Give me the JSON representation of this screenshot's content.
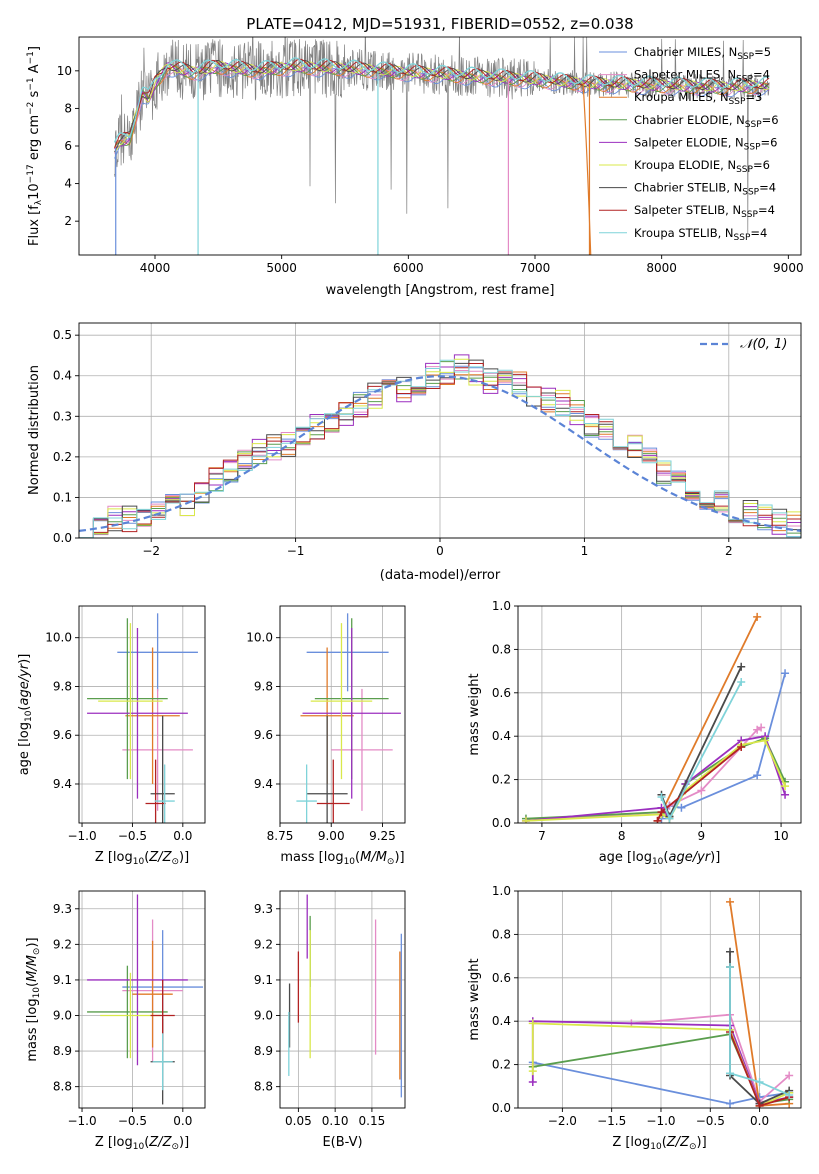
{
  "figure_title": "PLATE=0412, MJD=51931, FIBERID=0552, z=0.038",
  "colors": {
    "Chabrier MILES": "#6a8fdc",
    "Salpeter MILES": "#e48bc6",
    "Kroupa MILES": "#e07b2a",
    "Chabrier ELODIE": "#5a9e4e",
    "Salpeter ELODIE": "#9b2fbf",
    "Kroupa ELODIE": "#d9e84a",
    "Chabrier STELIB": "#4a4a4a",
    "Salpeter STELIB": "#b22222",
    "Kroupa STELIB": "#7fd3d9"
  },
  "chart_data": [
    {
      "type": "line",
      "title": "PLATE=0412, MJD=51931, FIBERID=0552, z=0.038",
      "xlabel": "wavelength [Angstrom, rest frame]",
      "ylabel": "Flux [f_λ 10^-17 erg cm^-2 s^-1 A^-1]",
      "xlim": [
        3400,
        9100
      ],
      "ylim": [
        0.2,
        11.8
      ],
      "xticks": [
        4000,
        5000,
        6000,
        7000,
        8000,
        9000
      ],
      "yticks": [
        2,
        4,
        6,
        8,
        10
      ],
      "legend_position": "top-right",
      "legend": [
        {
          "name": "Chabrier MILES",
          "nssp": "5"
        },
        {
          "name": "Salpeter MILES",
          "nssp": "4"
        },
        {
          "name": "Kroupa MILES",
          "nssp": "3"
        },
        {
          "name": "Chabrier ELODIE",
          "nssp": "6"
        },
        {
          "name": "Salpeter ELODIE",
          "nssp": "6"
        },
        {
          "name": "Kroupa ELODIE",
          "nssp": "6"
        },
        {
          "name": "Chabrier STELIB",
          "nssp": "4"
        },
        {
          "name": "Salpeter STELIB",
          "nssp": "4"
        },
        {
          "name": "Kroupa STELIB",
          "nssp": "4"
        }
      ],
      "data_range_angstrom": [
        3680,
        8850
      ],
      "model_continuum": {
        "x": [
          3680,
          3720,
          3800,
          3900,
          3950,
          4000,
          4100,
          4300,
          4500,
          4800,
          5100,
          5500,
          6000,
          6500,
          7000,
          7400,
          8000,
          8500,
          8850
        ],
        "y": [
          5.8,
          6.2,
          6.4,
          8.8,
          8.5,
          9.3,
          10.2,
          9.9,
          10.2,
          10.0,
          10.2,
          10.1,
          9.9,
          9.7,
          9.5,
          9.3,
          9.2,
          9.1,
          9.2
        ]
      }
    },
    {
      "type": "histogram",
      "xlabel": "(data-model)/error",
      "ylabel": "Normed distribution",
      "xlim": [
        -2.5,
        2.5
      ],
      "ylim": [
        0,
        0.53
      ],
      "xticks": [
        -2,
        -1,
        0,
        1,
        2
      ],
      "yticks": [
        0.0,
        0.1,
        0.2,
        0.3,
        0.4,
        0.5
      ],
      "bin_width": 0.1,
      "bin_start": -2.5,
      "reference_curve": "N(0,1)",
      "legend_label": "𝒩(0, 1)",
      "base_values": [
        0.03,
        0.04,
        0.05,
        0.05,
        0.06,
        0.07,
        0.08,
        0.09,
        0.12,
        0.14,
        0.17,
        0.19,
        0.21,
        0.22,
        0.23,
        0.26,
        0.27,
        0.29,
        0.3,
        0.33,
        0.35,
        0.36,
        0.37,
        0.38,
        0.4,
        0.41,
        0.42,
        0.41,
        0.39,
        0.4,
        0.38,
        0.36,
        0.34,
        0.33,
        0.31,
        0.28,
        0.26,
        0.25,
        0.22,
        0.2,
        0.16,
        0.14,
        0.12,
        0.1,
        0.09,
        0.07,
        0.06,
        0.05,
        0.04,
        0.03
      ]
    },
    {
      "type": "errorbar",
      "xlabel": "Z [log10(Z/Z⊙)]",
      "ylabel": "age [log10(age/yr)]",
      "xlim": [
        -1.03,
        0.22
      ],
      "ylim": [
        9.24,
        10.13
      ],
      "xticks": [
        -1.0,
        -0.5,
        0.0
      ],
      "yticks": [
        9.4,
        9.6,
        9.8,
        10.0
      ],
      "points": [
        {
          "series": "Chabrier MILES",
          "x": -0.25,
          "xerr": 0.4,
          "y": 9.94,
          "yerr": 0.16
        },
        {
          "series": "Salpeter MILES",
          "x": -0.25,
          "xerr": 0.35,
          "y": 9.54,
          "yerr": 0.25
        },
        {
          "series": "Kroupa MILES",
          "x": -0.3,
          "xerr": 0.27,
          "y": 9.68,
          "yerr": 0.28
        },
        {
          "series": "Chabrier ELODIE",
          "x": -0.55,
          "xerr": 0.4,
          "y": 9.75,
          "yerr": 0.33
        },
        {
          "series": "Salpeter ELODIE",
          "x": -0.45,
          "xerr": 0.5,
          "y": 9.69,
          "yerr": 0.35
        },
        {
          "series": "Kroupa ELODIE",
          "x": -0.52,
          "xerr": 0.32,
          "y": 9.74,
          "yerr": 0.32
        },
        {
          "series": "Chabrier STELIB",
          "x": -0.2,
          "xerr": 0.12,
          "y": 9.36,
          "yerr": 0.32
        },
        {
          "series": "Salpeter STELIB",
          "x": -0.27,
          "xerr": 0.1,
          "y": 9.32,
          "yerr": 0.18
        },
        {
          "series": "Kroupa STELIB",
          "x": -0.18,
          "xerr": 0.1,
          "y": 9.33,
          "yerr": 0.15
        }
      ]
    },
    {
      "type": "errorbar",
      "xlabel": "mass [log10(M/M⊙)]",
      "ylabel": "",
      "xlim": [
        8.75,
        9.36
      ],
      "ylim": [
        9.24,
        10.13
      ],
      "xticks": [
        8.75,
        9.0,
        9.25
      ],
      "yticks": [
        9.4,
        9.6,
        9.8,
        10.0
      ],
      "points": [
        {
          "series": "Chabrier MILES",
          "x": 9.08,
          "xerr": 0.2,
          "y": 9.94,
          "yerr": 0.16
        },
        {
          "series": "Salpeter MILES",
          "x": 9.15,
          "xerr": 0.15,
          "y": 9.54,
          "yerr": 0.25
        },
        {
          "series": "Kroupa MILES",
          "x": 8.98,
          "xerr": 0.13,
          "y": 9.68,
          "yerr": 0.28
        },
        {
          "series": "Chabrier ELODIE",
          "x": 9.1,
          "xerr": 0.18,
          "y": 9.75,
          "yerr": 0.33
        },
        {
          "series": "Salpeter ELODIE",
          "x": 9.1,
          "xerr": 0.24,
          "y": 9.69,
          "yerr": 0.35
        },
        {
          "series": "Kroupa ELODIE",
          "x": 9.05,
          "xerr": 0.15,
          "y": 9.74,
          "yerr": 0.32
        },
        {
          "series": "Chabrier STELIB",
          "x": 8.98,
          "xerr": 0.1,
          "y": 9.36,
          "yerr": 0.32
        },
        {
          "series": "Salpeter STELIB",
          "x": 9.01,
          "xerr": 0.08,
          "y": 9.32,
          "yerr": 0.18
        },
        {
          "series": "Kroupa STELIB",
          "x": 8.88,
          "xerr": 0.05,
          "y": 9.33,
          "yerr": 0.15
        }
      ]
    },
    {
      "type": "line",
      "xlabel": "age [log10(age/yr)]",
      "ylabel": "mass weight",
      "xlim": [
        6.7,
        10.25
      ],
      "ylim": [
        0,
        1
      ],
      "xticks": [
        7,
        8,
        9,
        10
      ],
      "yticks": [
        0.0,
        0.2,
        0.4,
        0.6,
        0.8,
        1.0
      ],
      "series": [
        {
          "name": "Chabrier MILES",
          "x": [
            8.5,
            8.6,
            8.75,
            9.7,
            10.05
          ],
          "y": [
            0.02,
            0.08,
            0.07,
            0.22,
            0.69
          ]
        },
        {
          "name": "Salpeter MILES",
          "x": [
            6.8,
            8.5,
            8.6,
            9.0,
            9.7,
            9.75
          ],
          "y": [
            0.01,
            0.05,
            0.08,
            0.15,
            0.43,
            0.44
          ]
        },
        {
          "name": "Kroupa MILES",
          "x": [
            8.45,
            9.7
          ],
          "y": [
            0.01,
            0.95
          ]
        },
        {
          "name": "Chabrier ELODIE",
          "x": [
            6.8,
            8.5,
            8.6,
            8.8,
            9.5,
            9.8,
            10.05
          ],
          "y": [
            0.02,
            0.05,
            0.03,
            0.18,
            0.35,
            0.39,
            0.19
          ]
        },
        {
          "name": "Salpeter ELODIE",
          "x": [
            6.8,
            8.5,
            8.6,
            8.8,
            9.5,
            9.8,
            10.05
          ],
          "y": [
            0.01,
            0.07,
            0.02,
            0.18,
            0.38,
            0.4,
            0.13
          ]
        },
        {
          "name": "Kroupa ELODIE",
          "x": [
            6.8,
            8.5,
            8.6,
            8.8,
            9.5,
            9.8,
            10.05
          ],
          "y": [
            0.01,
            0.04,
            0.02,
            0.15,
            0.36,
            0.38,
            0.17
          ]
        },
        {
          "name": "Chabrier STELIB",
          "x": [
            8.5,
            8.6,
            9.5
          ],
          "y": [
            0.13,
            0.03,
            0.72
          ]
        },
        {
          "name": "Salpeter STELIB",
          "x": [
            8.45,
            8.5,
            9.5
          ],
          "y": [
            0.01,
            0.05,
            0.35
          ]
        },
        {
          "name": "Kroupa STELIB",
          "x": [
            8.5,
            8.6,
            9.5
          ],
          "y": [
            0.12,
            0.02,
            0.65
          ]
        }
      ]
    },
    {
      "type": "errorbar",
      "xlabel": "Z [log10(Z/Z⊙)]",
      "ylabel": "mass [log10(M/M⊙)]",
      "xlim": [
        -1.03,
        0.22
      ],
      "ylim": [
        8.74,
        9.35
      ],
      "xticks": [
        -1.0,
        -0.5,
        0.0
      ],
      "yticks": [
        8.8,
        8.9,
        9.0,
        9.1,
        9.2,
        9.3
      ],
      "points": [
        {
          "series": "Chabrier MILES",
          "x": -0.2,
          "xerr": 0.4,
          "y": 9.08,
          "yerr": 0.16
        },
        {
          "series": "Salpeter MILES",
          "x": -0.3,
          "xerr": 0.3,
          "y": 9.07,
          "yerr": 0.2
        },
        {
          "series": "Kroupa MILES",
          "x": -0.3,
          "xerr": 0.2,
          "y": 9.06,
          "yerr": 0.15
        },
        {
          "series": "Chabrier ELODIE",
          "x": -0.55,
          "xerr": 0.4,
          "y": 9.01,
          "yerr": 0.13
        },
        {
          "series": "Salpeter ELODIE",
          "x": -0.45,
          "xerr": 0.5,
          "y": 9.1,
          "yerr": 0.24
        },
        {
          "series": "Kroupa ELODIE",
          "x": -0.52,
          "xerr": 0.3,
          "y": 9.0,
          "yerr": 0.12
        },
        {
          "series": "Chabrier STELIB",
          "x": -0.2,
          "xerr": 0.12,
          "y": 8.87,
          "yerr": 0.12
        },
        {
          "series": "Salpeter STELIB",
          "x": -0.2,
          "xerr": 0.12,
          "y": 9.0,
          "yerr": 0.1
        },
        {
          "series": "Kroupa STELIB",
          "x": -0.2,
          "xerr": 0.1,
          "y": 8.87,
          "yerr": 0.08
        }
      ]
    },
    {
      "type": "errorbar",
      "xlabel": "E(B-V)",
      "ylabel": "",
      "xlim": [
        0.025,
        0.195
      ],
      "ylim": [
        8.74,
        9.35
      ],
      "xticks": [
        0.05,
        0.1,
        0.15
      ],
      "yticks": [
        8.8,
        8.9,
        9.0,
        9.1,
        9.2,
        9.3
      ],
      "points": [
        {
          "series": "Chabrier MILES",
          "x": 0.19,
          "y": 9.0,
          "yerr": 0.23
        },
        {
          "series": "Salpeter MILES",
          "x": 0.155,
          "y": 9.08,
          "yerr": 0.19
        },
        {
          "series": "Kroupa MILES",
          "x": 0.188,
          "y": 9.0,
          "yerr": 0.18
        },
        {
          "series": "Chabrier ELODIE",
          "x": 0.066,
          "y": 9.18,
          "yerr": 0.1
        },
        {
          "series": "Salpeter ELODIE",
          "x": 0.062,
          "y": 9.25,
          "yerr": 0.09
        },
        {
          "series": "Kroupa ELODIE",
          "x": 0.066,
          "y": 9.06,
          "yerr": 0.18
        },
        {
          "series": "Chabrier STELIB",
          "x": 0.038,
          "y": 9.0,
          "yerr": 0.09
        },
        {
          "series": "Salpeter STELIB",
          "x": 0.05,
          "y": 9.08,
          "yerr": 0.1
        },
        {
          "series": "Kroupa STELIB",
          "x": 0.037,
          "y": 8.92,
          "yerr": 0.09
        }
      ]
    },
    {
      "type": "line",
      "xlabel": "Z [log10(Z/Z⊙)]",
      "ylabel": "mass weight",
      "xlim": [
        -2.45,
        0.42
      ],
      "ylim": [
        0,
        1
      ],
      "xticks": [
        -2.0,
        -1.5,
        -1.0,
        -0.5,
        0.0
      ],
      "yticks": [
        0.0,
        0.2,
        0.4,
        0.6,
        0.8,
        1.0
      ],
      "series": [
        {
          "name": "Chabrier MILES",
          "x": [
            -2.3,
            -0.3,
            0.0,
            0.3
          ],
          "y": [
            0.21,
            0.02,
            0.05,
            0.07
          ]
        },
        {
          "name": "Salpeter MILES",
          "x": [
            -1.3,
            -0.3,
            0.0,
            0.3
          ],
          "y": [
            0.39,
            0.43,
            0.03,
            0.15
          ]
        },
        {
          "name": "Kroupa MILES",
          "x": [
            -0.3,
            0.0,
            0.3
          ],
          "y": [
            0.95,
            0.01,
            0.02
          ]
        },
        {
          "name": "Chabrier ELODIE",
          "x": [
            -2.3,
            -0.3,
            0.0,
            0.3
          ],
          "y": [
            0.19,
            0.34,
            0.02,
            0.04
          ]
        },
        {
          "name": "Salpeter ELODIE",
          "x": [
            -2.3,
            -2.3,
            -0.3,
            0.0,
            0.3
          ],
          "y": [
            0.12,
            0.4,
            0.38,
            0.02,
            0.05
          ]
        },
        {
          "name": "Kroupa ELODIE",
          "x": [
            -2.3,
            -2.3,
            -0.3,
            0.0,
            0.3
          ],
          "y": [
            0.17,
            0.39,
            0.36,
            0.01,
            0.07
          ]
        },
        {
          "name": "Chabrier STELIB",
          "x": [
            -0.3,
            -0.3,
            -0.3,
            0.0,
            0.3
          ],
          "y": [
            0.72,
            0.65,
            0.15,
            0.02,
            0.08
          ]
        },
        {
          "name": "Salpeter STELIB",
          "x": [
            -0.3,
            0.0,
            0.3
          ],
          "y": [
            0.35,
            0.01,
            0.05
          ]
        },
        {
          "name": "Kroupa STELIB",
          "x": [
            -0.3,
            -0.3,
            0.0,
            0.3
          ],
          "y": [
            0.65,
            0.16,
            0.12,
            0.06
          ]
        }
      ]
    }
  ]
}
